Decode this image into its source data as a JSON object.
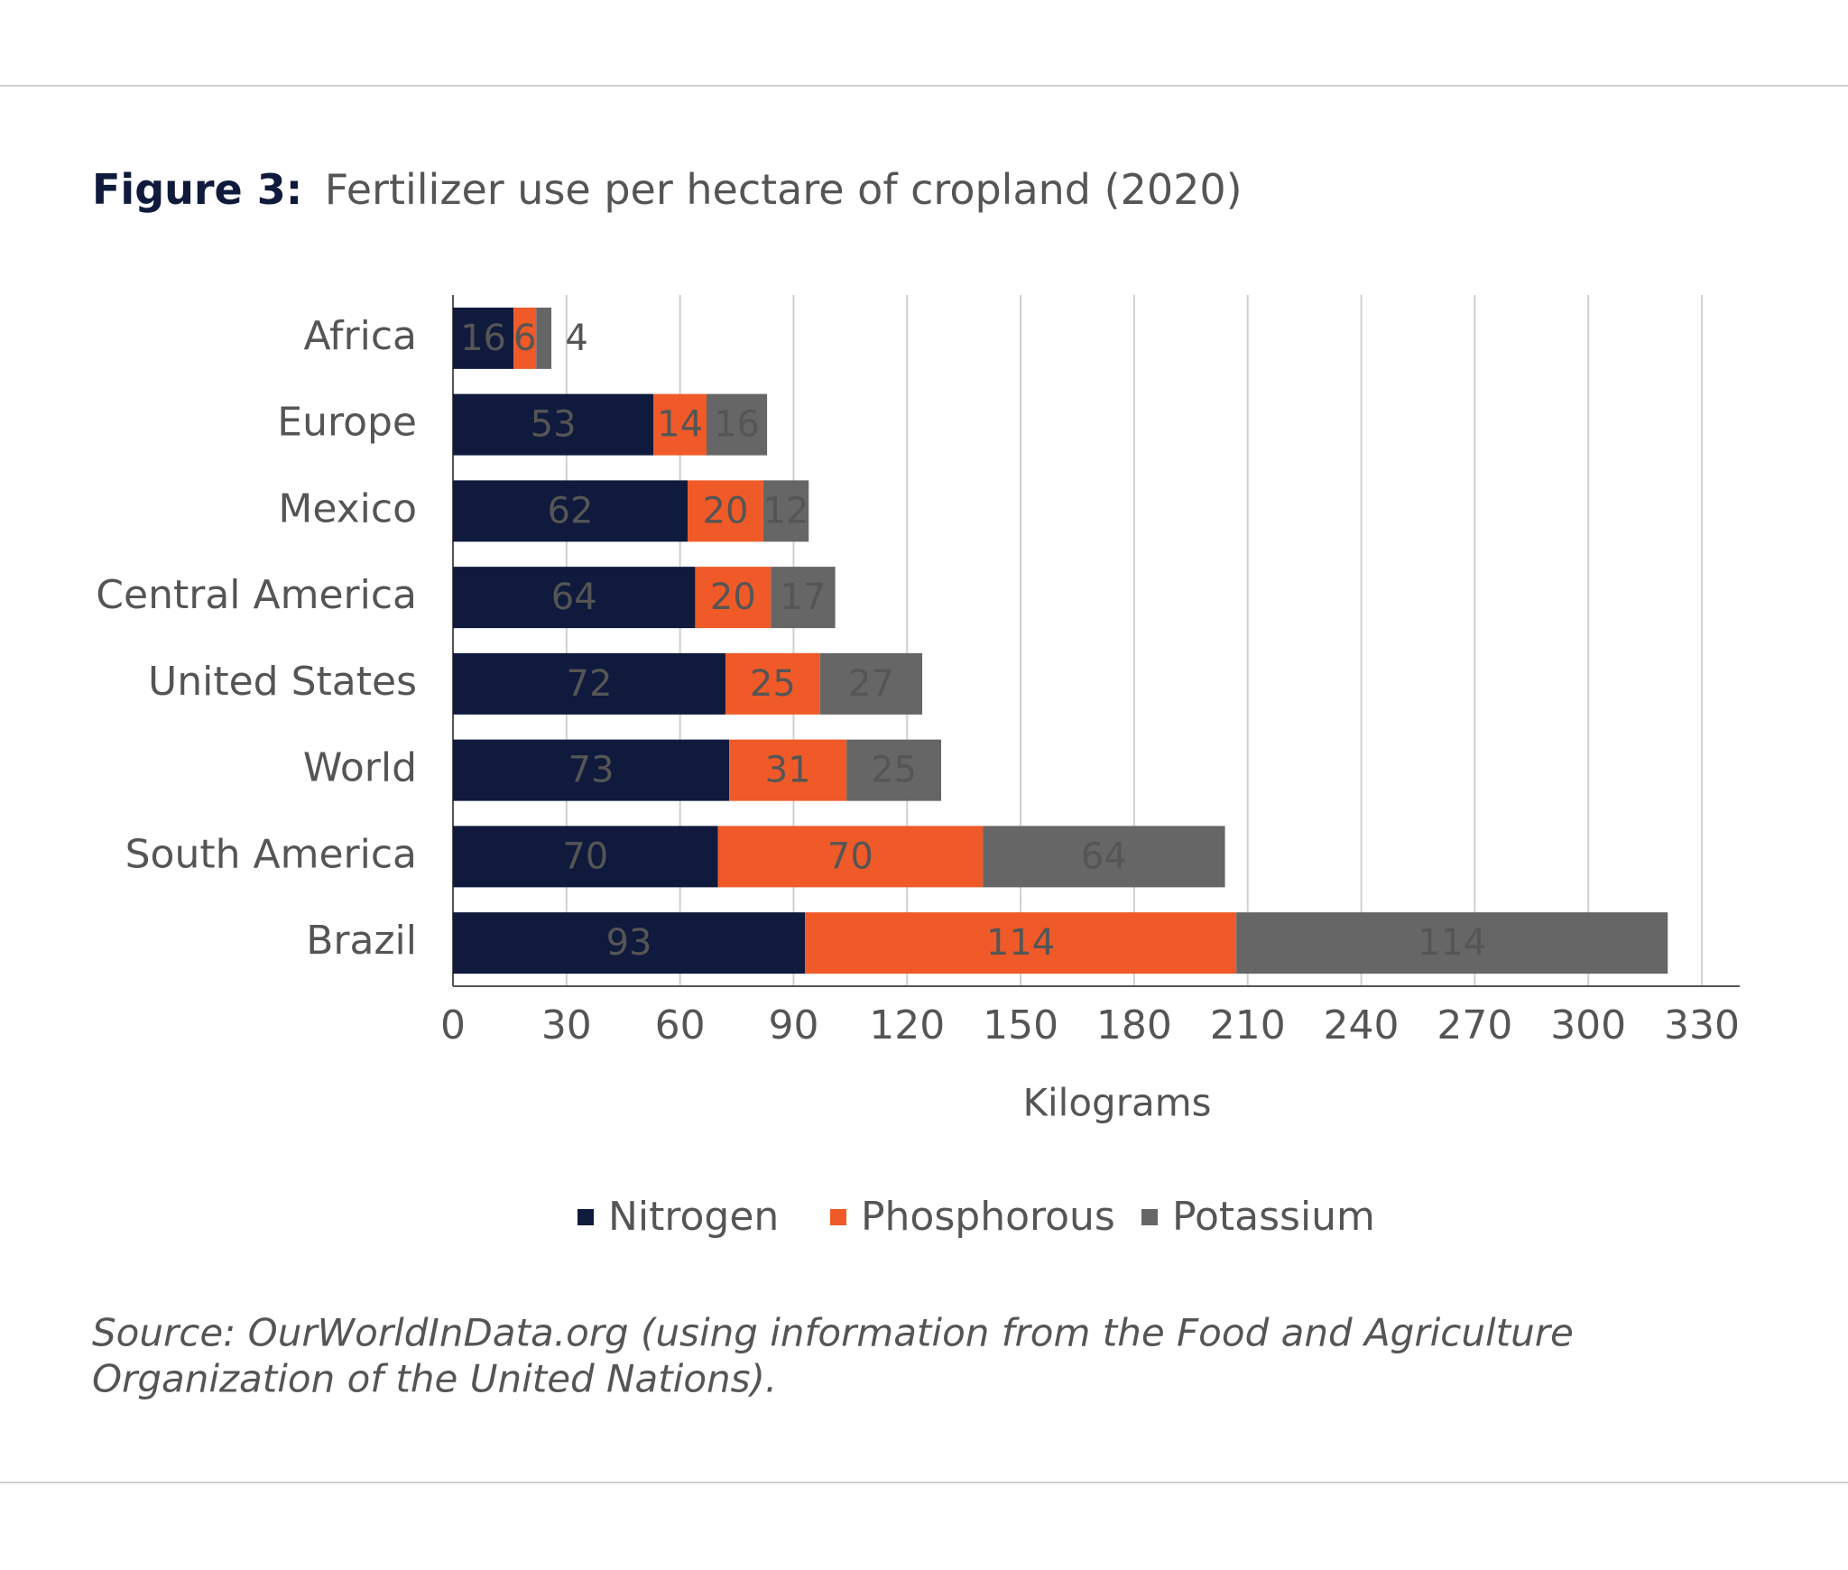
{
  "chart_data": {
    "type": "stacked-bar-horizontal",
    "title_prefix": "Figure 3:",
    "title": "Fertilizer use per hectare of cropland (2020)",
    "categories": [
      "Africa",
      "Europe",
      "Mexico",
      "Central America",
      "United States",
      "World",
      "South America",
      "Brazil"
    ],
    "series": [
      {
        "name": "Nitrogen",
        "color": "#0f1a3c",
        "values": [
          16,
          53,
          62,
          64,
          72,
          73,
          70,
          93
        ]
      },
      {
        "name": "Phosphorous",
        "color": "#f05a28",
        "values": [
          6,
          14,
          20,
          20,
          25,
          31,
          70,
          114
        ]
      },
      {
        "name": "Potassium",
        "color": "#666666",
        "values": [
          4,
          16,
          12,
          17,
          27,
          25,
          64,
          114
        ]
      }
    ],
    "xlim": [
      0,
      330
    ],
    "xticks": [
      0,
      30,
      60,
      90,
      120,
      150,
      180,
      210,
      240,
      270,
      300,
      330
    ],
    "x_label": "Kilograms",
    "grid": true,
    "legend": "bottom",
    "source": [
      "Source: OurWorldInData.org (using information from the Food and Agriculture",
      "Organization of the United Nations)."
    ]
  }
}
